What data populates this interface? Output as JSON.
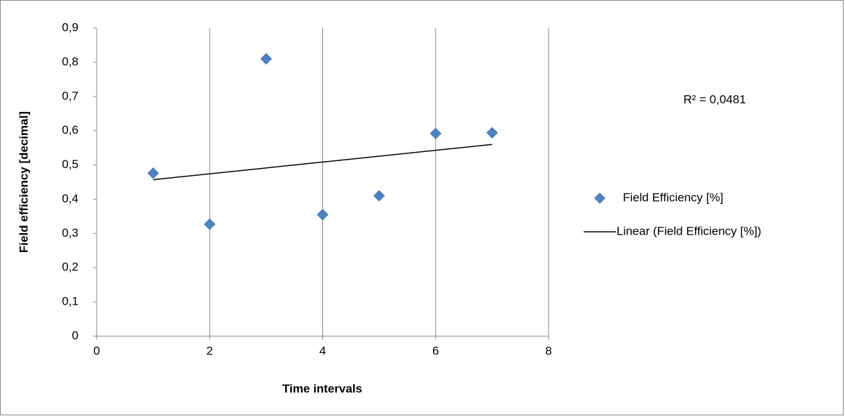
{
  "chart_data": {
    "type": "scatter",
    "y_label": "Field efficiency [decimal]",
    "x_label": "Time intervals",
    "annotation": "R² = 0,0481",
    "series": [
      {
        "name": "Field Efficiency [%]",
        "color": "#4f81bd",
        "marker": "diamond",
        "x": [
          1,
          2,
          3,
          4,
          5,
          6,
          7
        ],
        "values": [
          0.476,
          0.327,
          0.81,
          0.355,
          0.41,
          0.592,
          0.594
        ]
      },
      {
        "name": "Linear (Field Efficiency [%])",
        "color": "#000000",
        "marker": "line",
        "x": [
          1,
          7
        ],
        "values": [
          0.457,
          0.56
        ]
      }
    ],
    "xlim": [
      0,
      8
    ],
    "xticks": [
      0,
      2,
      4,
      6,
      8
    ],
    "ylim": [
      0,
      0.9
    ],
    "yticks": [
      0,
      {
        "value": 0.1,
        "label": "0,1"
      },
      {
        "value": 0.2,
        "label": "0,2"
      },
      {
        "value": 0.3,
        "label": "0,3"
      },
      {
        "value": 0.4,
        "label": "0,4"
      },
      {
        "value": 0.5,
        "label": "0,5"
      },
      {
        "value": 0.6,
        "label": "0,6"
      },
      {
        "value": 0.7,
        "label": "0,7"
      },
      {
        "value": 0.8,
        "label": "0,8"
      },
      {
        "value": 0.9,
        "label": "0,9"
      }
    ],
    "x_grid": true,
    "legend": "right"
  }
}
